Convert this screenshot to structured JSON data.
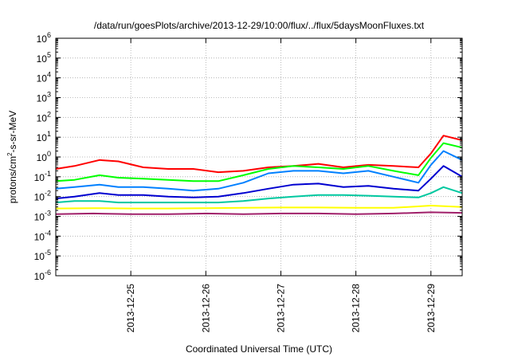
{
  "chart_data": {
    "type": "line",
    "title": "/data/run/goesPlots/archive/2013-12-29/10:00/flux/../flux/5daysMoonFluxes.txt",
    "xlabel": "Coordinated Universal Time (UTC)",
    "ylabel": {
      "prefix": "protons/cm",
      "sup": "2",
      "suffix": "-s-sr-MeV"
    },
    "yscale": "log",
    "ylim": [
      1e-06,
      1000000.0
    ],
    "xlim": [
      "2013-12-24T00:00",
      "2013-12-29T10:00"
    ],
    "grid": true,
    "yticks": [
      {
        "value": 1e-06,
        "base": "10",
        "exp": "-6"
      },
      {
        "value": 1e-05,
        "base": "10",
        "exp": "-5"
      },
      {
        "value": 0.0001,
        "base": "10",
        "exp": "-4"
      },
      {
        "value": 0.001,
        "base": "10",
        "exp": "-3"
      },
      {
        "value": 0.01,
        "base": "10",
        "exp": "-2"
      },
      {
        "value": 0.1,
        "base": "10",
        "exp": "-1"
      },
      {
        "value": 1,
        "base": "10",
        "exp": "0"
      },
      {
        "value": 10.0,
        "base": "10",
        "exp": "1"
      },
      {
        "value": 100.0,
        "base": "10",
        "exp": "2"
      },
      {
        "value": 1000.0,
        "base": "10",
        "exp": "3"
      },
      {
        "value": 10000.0,
        "base": "10",
        "exp": "4"
      },
      {
        "value": 100000.0,
        "base": "10",
        "exp": "5"
      },
      {
        "value": 1000000.0,
        "base": "10",
        "exp": "6"
      }
    ],
    "xticks": [
      "2013-12-25",
      "2013-12-26",
      "2013-12-27",
      "2013-12-28",
      "2013-12-29"
    ],
    "series": [
      {
        "color": "#ff0000",
        "x": [
          "2013-12-24T00:00",
          "2013-12-24T06:00",
          "2013-12-24T14:00",
          "2013-12-24T20:00",
          "2013-12-25T04:00",
          "2013-12-25T12:00",
          "2013-12-25T20:00",
          "2013-12-26T04:00",
          "2013-12-26T12:00",
          "2013-12-26T20:00",
          "2013-12-27T04:00",
          "2013-12-27T12:00",
          "2013-12-27T20:00",
          "2013-12-28T04:00",
          "2013-12-28T12:00",
          "2013-12-28T20:00",
          "2013-12-29T00:00",
          "2013-12-29T04:00",
          "2013-12-29T10:00"
        ],
        "y": [
          0.25,
          0.35,
          0.7,
          0.6,
          0.3,
          0.25,
          0.25,
          0.17,
          0.2,
          0.3,
          0.35,
          0.45,
          0.3,
          0.4,
          0.35,
          0.3,
          1.5,
          12,
          7
        ]
      },
      {
        "color": "#00ff00",
        "x": [
          "2013-12-24T00:00",
          "2013-12-24T06:00",
          "2013-12-24T14:00",
          "2013-12-24T20:00",
          "2013-12-25T04:00",
          "2013-12-25T12:00",
          "2013-12-25T20:00",
          "2013-12-26T04:00",
          "2013-12-26T12:00",
          "2013-12-26T20:00",
          "2013-12-27T04:00",
          "2013-12-27T12:00",
          "2013-12-27T20:00",
          "2013-12-28T04:00",
          "2013-12-28T12:00",
          "2013-12-28T20:00",
          "2013-12-29T00:00",
          "2013-12-29T04:00",
          "2013-12-29T10:00"
        ],
        "y": [
          0.06,
          0.07,
          0.12,
          0.09,
          0.08,
          0.07,
          0.06,
          0.06,
          0.12,
          0.25,
          0.35,
          0.3,
          0.25,
          0.35,
          0.2,
          0.12,
          0.9,
          5,
          3
        ]
      },
      {
        "color": "#0080ff",
        "x": [
          "2013-12-24T00:00",
          "2013-12-24T06:00",
          "2013-12-24T14:00",
          "2013-12-24T20:00",
          "2013-12-25T04:00",
          "2013-12-25T12:00",
          "2013-12-25T20:00",
          "2013-12-26T04:00",
          "2013-12-26T12:00",
          "2013-12-26T20:00",
          "2013-12-27T04:00",
          "2013-12-27T12:00",
          "2013-12-27T20:00",
          "2013-12-28T04:00",
          "2013-12-28T12:00",
          "2013-12-28T20:00",
          "2013-12-29T00:00",
          "2013-12-29T04:00",
          "2013-12-29T10:00"
        ],
        "y": [
          0.025,
          0.03,
          0.04,
          0.03,
          0.03,
          0.025,
          0.02,
          0.025,
          0.05,
          0.15,
          0.2,
          0.2,
          0.15,
          0.2,
          0.1,
          0.05,
          0.4,
          2,
          0.7
        ]
      },
      {
        "color": "#0000d0",
        "x": [
          "2013-12-24T00:00",
          "2013-12-24T06:00",
          "2013-12-24T14:00",
          "2013-12-24T20:00",
          "2013-12-25T04:00",
          "2013-12-25T12:00",
          "2013-12-25T20:00",
          "2013-12-26T04:00",
          "2013-12-26T12:00",
          "2013-12-26T20:00",
          "2013-12-27T04:00",
          "2013-12-27T12:00",
          "2013-12-27T20:00",
          "2013-12-28T04:00",
          "2013-12-28T12:00",
          "2013-12-28T20:00",
          "2013-12-29T00:00",
          "2013-12-29T04:00",
          "2013-12-29T10:00"
        ],
        "y": [
          0.008,
          0.01,
          0.015,
          0.012,
          0.012,
          0.01,
          0.009,
          0.01,
          0.015,
          0.025,
          0.04,
          0.045,
          0.03,
          0.035,
          0.025,
          0.02,
          0.08,
          0.35,
          0.1
        ]
      },
      {
        "color": "#00c8a0",
        "x": [
          "2013-12-24T00:00",
          "2013-12-24T06:00",
          "2013-12-24T14:00",
          "2013-12-24T20:00",
          "2013-12-25T04:00",
          "2013-12-25T12:00",
          "2013-12-25T20:00",
          "2013-12-26T04:00",
          "2013-12-26T12:00",
          "2013-12-26T20:00",
          "2013-12-27T04:00",
          "2013-12-27T12:00",
          "2013-12-27T20:00",
          "2013-12-28T04:00",
          "2013-12-28T12:00",
          "2013-12-28T20:00",
          "2013-12-29T00:00",
          "2013-12-29T04:00",
          "2013-12-29T10:00"
        ],
        "y": [
          0.005,
          0.006,
          0.006,
          0.005,
          0.005,
          0.005,
          0.005,
          0.005,
          0.006,
          0.008,
          0.01,
          0.012,
          0.012,
          0.011,
          0.01,
          0.009,
          0.015,
          0.03,
          0.015
        ]
      },
      {
        "color": "#ffff00",
        "x": [
          "2013-12-24T00:00",
          "2013-12-24T12:00",
          "2013-12-25T00:00",
          "2013-12-25T12:00",
          "2013-12-26T00:00",
          "2013-12-26T12:00",
          "2013-12-27T00:00",
          "2013-12-27T12:00",
          "2013-12-28T00:00",
          "2013-12-28T12:00",
          "2013-12-29T00:00",
          "2013-12-29T10:00"
        ],
        "y": [
          0.0025,
          0.0026,
          0.0025,
          0.0025,
          0.0026,
          0.0027,
          0.0028,
          0.0028,
          0.0027,
          0.0027,
          0.0035,
          0.003
        ]
      },
      {
        "color": "#a0206a",
        "x": [
          "2013-12-24T00:00",
          "2013-12-24T12:00",
          "2013-12-25T00:00",
          "2013-12-25T12:00",
          "2013-12-26T00:00",
          "2013-12-26T12:00",
          "2013-12-27T00:00",
          "2013-12-27T12:00",
          "2013-12-28T00:00",
          "2013-12-28T12:00",
          "2013-12-29T00:00",
          "2013-12-29T10:00"
        ],
        "y": [
          0.0013,
          0.0014,
          0.0013,
          0.0013,
          0.0014,
          0.0013,
          0.0014,
          0.0014,
          0.0013,
          0.0014,
          0.0016,
          0.0015
        ]
      }
    ]
  }
}
